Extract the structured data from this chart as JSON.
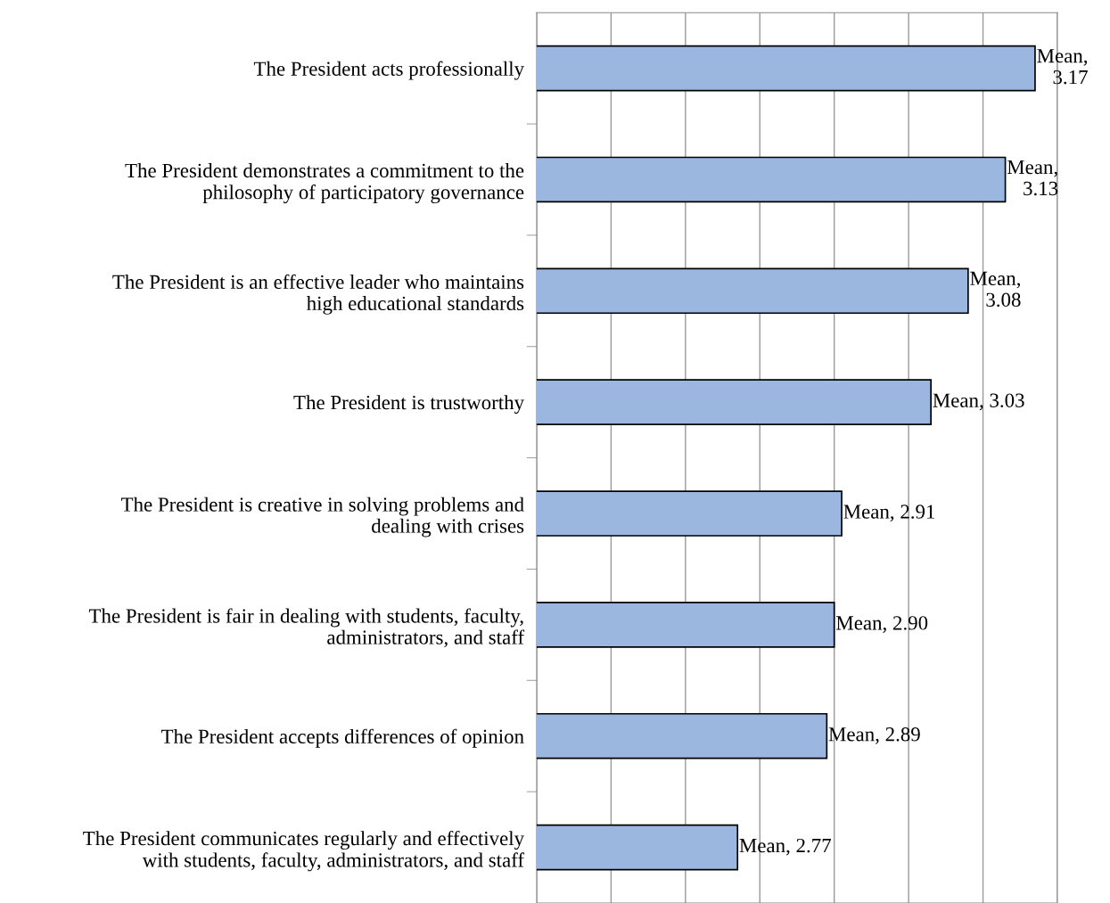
{
  "chart_data": {
    "type": "bar",
    "orientation": "horizontal",
    "categories": [
      "The President acts professionally",
      "The President demonstrates a commitment to the\nphilosophy of participatory governance",
      "The President is an effective leader who maintains\nhigh educational standards",
      "The President is trustworthy",
      "The President is creative in solving problems and\ndealing with crises",
      "The President is fair in dealing with students, faculty,\nadministrators, and staff",
      "The President accepts differences of opinion",
      "The President communicates regularly and effectively\nwith students, faculty, administrators, and staff"
    ],
    "values": [
      3.17,
      3.13,
      3.08,
      3.03,
      2.91,
      2.9,
      2.89,
      2.77
    ],
    "value_labels": [
      "Mean,\n3.17",
      "Mean,\n3.13",
      "Mean,\n3.08",
      "Mean, 3.03",
      "Mean, 2.91",
      "Mean, 2.90",
      "Mean, 2.89",
      "Mean, 2.77"
    ],
    "color": "#9bb7e0",
    "xlim": [
      2.5,
      3.2
    ],
    "xticks": [
      {
        "value": 2.5,
        "label": null
      },
      {
        "value": 2.6,
        "label": null
      },
      {
        "value": 2.7,
        "label": null
      },
      {
        "value": 2.8,
        "label": null
      },
      {
        "value": 2.9,
        "label": null
      },
      {
        "value": 3.0,
        "label": null
      },
      {
        "value": 3.1,
        "label": null
      },
      {
        "value": 3.2,
        "label": null
      }
    ],
    "grid": "x"
  }
}
